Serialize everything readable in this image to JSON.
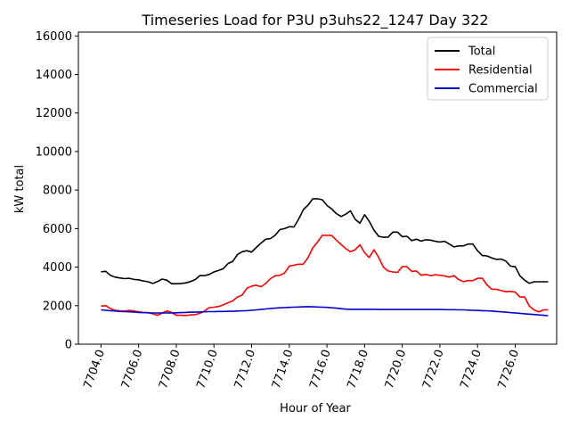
{
  "chart_data": {
    "type": "line",
    "title": "Timeseries Load for P3U p3uhs22_1247  Day 322",
    "xlabel": "Hour of Year",
    "ylabel": "kW total",
    "xlim": [
      7702.8,
      7728.2
    ],
    "ylim": [
      0,
      16200
    ],
    "x_ticks": [
      7704.0,
      7706.0,
      7708.0,
      7710.0,
      7712.0,
      7714.0,
      7716.0,
      7718.0,
      7720.0,
      7722.0,
      7724.0,
      7726.0
    ],
    "x_tick_labels": [
      "7704.0",
      "7706.0",
      "7708.0",
      "7710.0",
      "7712.0",
      "7714.0",
      "7716.0",
      "7718.0",
      "7720.0",
      "7722.0",
      "7724.0",
      "7726.0"
    ],
    "y_ticks": [
      0,
      2000,
      4000,
      6000,
      8000,
      10000,
      12000,
      14000,
      16000
    ],
    "y_tick_labels": [
      "0",
      "2000",
      "4000",
      "6000",
      "8000",
      "10000",
      "12000",
      "14000",
      "16000"
    ],
    "legend_position": "top-right",
    "x": [
      7704.0,
      7704.25,
      7704.5,
      7704.75,
      7705.0,
      7705.25,
      7705.5,
      7705.75,
      7706.0,
      7706.25,
      7706.5,
      7706.75,
      7707.0,
      7707.25,
      7707.5,
      7707.75,
      7708.0,
      7708.25,
      7708.5,
      7708.75,
      7709.0,
      7709.25,
      7709.5,
      7709.75,
      7710.0,
      7710.25,
      7710.5,
      7710.75,
      7711.0,
      7711.25,
      7711.5,
      7711.75,
      7712.0,
      7712.25,
      7712.5,
      7712.75,
      7713.0,
      7713.25,
      7713.5,
      7713.75,
      7714.0,
      7714.25,
      7714.5,
      7714.75,
      7715.0,
      7715.25,
      7715.5,
      7715.75,
      7716.0,
      7716.25,
      7716.5,
      7716.75,
      7717.0,
      7717.25,
      7717.5,
      7717.75,
      7718.0,
      7718.25,
      7718.5,
      7718.75,
      7719.0,
      7719.25,
      7719.5,
      7719.75,
      7720.0,
      7720.25,
      7720.5,
      7720.75,
      7721.0,
      7721.25,
      7721.5,
      7721.75,
      7722.0,
      7722.25,
      7722.5,
      7722.75,
      7723.0,
      7723.25,
      7723.5,
      7723.75,
      7724.0,
      7724.25,
      7724.5,
      7724.75,
      7725.0,
      7725.25,
      7725.5,
      7725.75,
      7726.0,
      7726.25,
      7726.5,
      7726.75,
      7727.0,
      7727.25,
      7727.5,
      7727.75
    ],
    "series": [
      {
        "name": "Total",
        "color": "#000000",
        "values": [
          3760,
          3780,
          3580,
          3480,
          3440,
          3400,
          3420,
          3360,
          3340,
          3280,
          3240,
          3150,
          3250,
          3380,
          3320,
          3140,
          3140,
          3150,
          3180,
          3250,
          3350,
          3560,
          3560,
          3620,
          3750,
          3830,
          3920,
          4190,
          4300,
          4650,
          4800,
          4850,
          4780,
          5020,
          5250,
          5450,
          5480,
          5650,
          5950,
          6000,
          6100,
          6080,
          6500,
          6980,
          7220,
          7550,
          7550,
          7500,
          7200,
          7020,
          6780,
          6630,
          6750,
          6920,
          6480,
          6280,
          6720,
          6380,
          5920,
          5600,
          5550,
          5560,
          5820,
          5820,
          5580,
          5600,
          5380,
          5450,
          5350,
          5420,
          5400,
          5340,
          5300,
          5340,
          5200,
          5050,
          5100,
          5100,
          5200,
          5200,
          4850,
          4600,
          4580,
          4480,
          4400,
          4420,
          4320,
          4050,
          4020,
          3550,
          3320,
          3160,
          3240,
          3240,
          3240,
          3240
        ]
      },
      {
        "name": "Residential",
        "color": "#ff0000",
        "values": [
          1980,
          2000,
          1850,
          1760,
          1730,
          1720,
          1760,
          1720,
          1680,
          1650,
          1640,
          1580,
          1500,
          1620,
          1720,
          1650,
          1500,
          1500,
          1490,
          1520,
          1530,
          1600,
          1720,
          1900,
          1920,
          1960,
          2050,
          2150,
          2250,
          2450,
          2550,
          2900,
          3020,
          3060,
          2980,
          3150,
          3400,
          3550,
          3580,
          3700,
          4050,
          4100,
          4150,
          4150,
          4500,
          5000,
          5300,
          5650,
          5650,
          5640,
          5400,
          5180,
          4960,
          4800,
          4900,
          5160,
          4750,
          4500,
          4900,
          4500,
          4000,
          3800,
          3750,
          3720,
          4020,
          4020,
          3780,
          3800,
          3580,
          3620,
          3560,
          3600,
          3580,
          3540,
          3480,
          3560,
          3350,
          3250,
          3300,
          3300,
          3420,
          3420,
          3080,
          2850,
          2850,
          2780,
          2720,
          2740,
          2700,
          2450,
          2450,
          1980,
          1780,
          1680,
          1780,
          1780
        ]
      },
      {
        "name": "Commercial",
        "color": "#0000cc",
        "values": [
          1780,
          1760,
          1740,
          1720,
          1700,
          1690,
          1680,
          1670,
          1650,
          1640,
          1630,
          1620,
          1620,
          1620,
          1620,
          1620,
          1630,
          1640,
          1650,
          1660,
          1660,
          1670,
          1680,
          1690,
          1690,
          1700,
          1700,
          1710,
          1710,
          1720,
          1730,
          1740,
          1760,
          1780,
          1800,
          1830,
          1850,
          1870,
          1890,
          1900,
          1910,
          1920,
          1930,
          1940,
          1950,
          1940,
          1930,
          1920,
          1910,
          1890,
          1870,
          1840,
          1820,
          1810,
          1810,
          1810,
          1810,
          1810,
          1810,
          1800,
          1800,
          1800,
          1800,
          1800,
          1800,
          1800,
          1800,
          1800,
          1800,
          1800,
          1800,
          1800,
          1800,
          1790,
          1790,
          1790,
          1780,
          1780,
          1770,
          1760,
          1750,
          1740,
          1730,
          1720,
          1700,
          1680,
          1660,
          1640,
          1620,
          1600,
          1580,
          1560,
          1540,
          1520,
          1500,
          1480
        ]
      }
    ]
  }
}
